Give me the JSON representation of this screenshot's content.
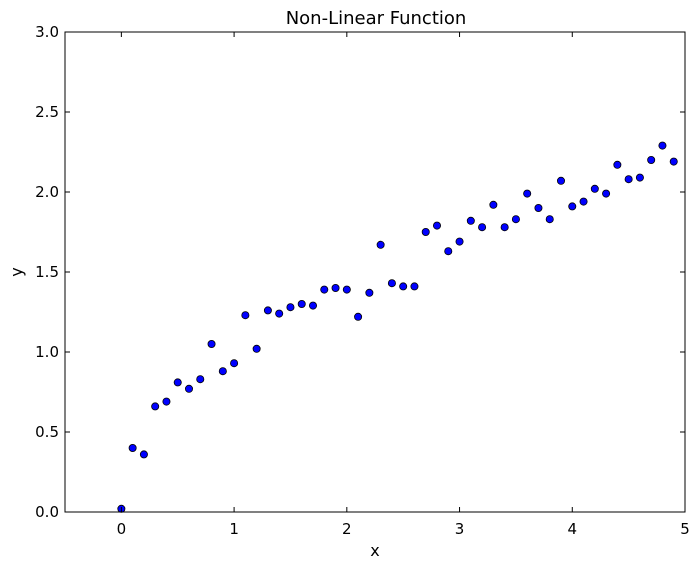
{
  "chart_data": {
    "type": "scatter",
    "title": "Non-Linear Function",
    "xlabel": "x",
    "ylabel": "y",
    "xlim": [
      -0.5,
      5
    ],
    "ylim": [
      0.0,
      3.0
    ],
    "xticks": [
      0,
      1,
      2,
      3,
      4,
      5
    ],
    "xtick_labels": [
      "0",
      "1",
      "2",
      "3",
      "4",
      "5"
    ],
    "yticks": [
      0.0,
      0.5,
      1.0,
      1.5,
      2.0,
      2.5,
      3.0
    ],
    "ytick_labels": [
      "0.0",
      "0.5",
      "1.0",
      "1.5",
      "2.0",
      "2.5",
      "3.0"
    ],
    "grid": false,
    "marker_color": "#0000ff",
    "marker_edge_color": "#000000",
    "series": [
      {
        "x": [
          0.0,
          0.1,
          0.2,
          0.3,
          0.4,
          0.5,
          0.6,
          0.7,
          0.8,
          0.9,
          1.0,
          1.1,
          1.2,
          1.3,
          1.4,
          1.5,
          1.6,
          1.7,
          1.8,
          1.9,
          2.0,
          2.1,
          2.2,
          2.3,
          2.4,
          2.5,
          2.6,
          2.7,
          2.8,
          2.9,
          3.0,
          3.1,
          3.2,
          3.3,
          3.4,
          3.5,
          3.6,
          3.7,
          3.8,
          3.9,
          4.0,
          4.1,
          4.2,
          4.3,
          4.4,
          4.5,
          4.6,
          4.7,
          4.8,
          4.9
        ],
        "y": [
          0.02,
          0.4,
          0.36,
          0.66,
          0.69,
          0.81,
          0.77,
          0.83,
          1.05,
          0.88,
          0.93,
          1.23,
          1.02,
          1.26,
          1.24,
          1.28,
          1.3,
          1.29,
          1.39,
          1.4,
          1.39,
          1.22,
          1.37,
          1.67,
          1.43,
          1.41,
          1.41,
          1.75,
          1.79,
          1.63,
          1.69,
          1.82,
          1.78,
          1.92,
          1.78,
          1.83,
          1.99,
          1.9,
          1.83,
          2.07,
          1.91,
          1.94,
          2.02,
          1.99,
          2.17,
          2.08,
          2.09,
          2.2,
          2.29,
          2.19
        ]
      }
    ]
  }
}
